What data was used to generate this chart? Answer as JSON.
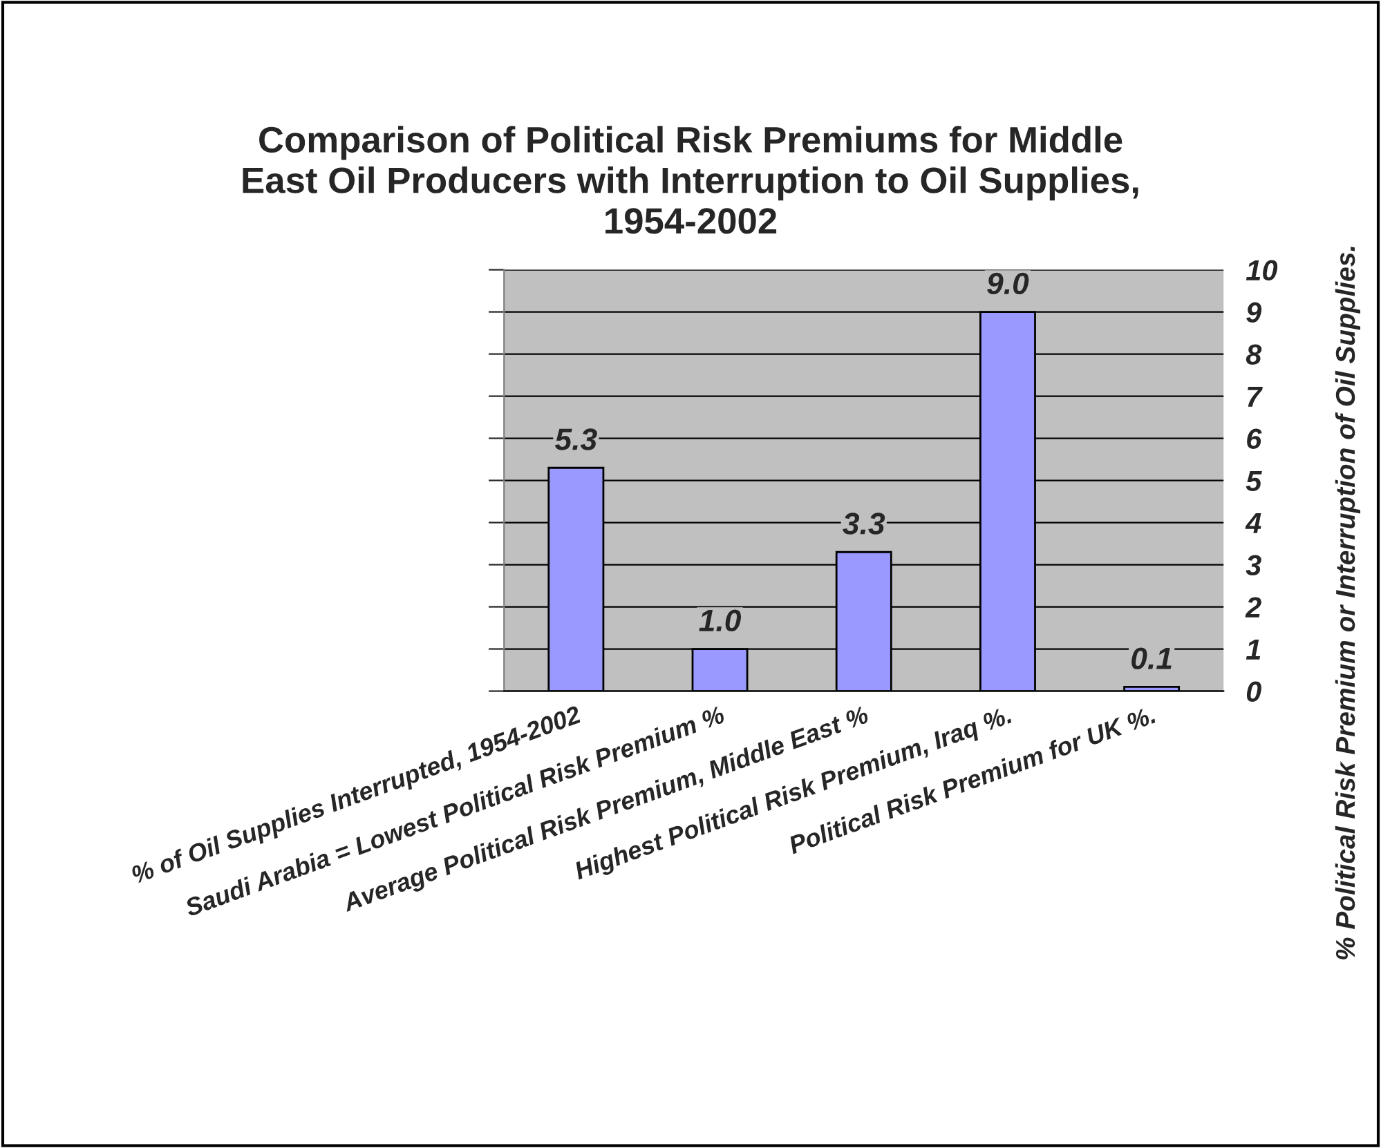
{
  "chart_data": {
    "type": "bar",
    "title": "Comparison of Political Risk Premiums for Middle\nEast Oil Producers with Interruption to Oil Supplies,\n1954-2002",
    "categories": [
      "% of Oil Supplies Interrupted, 1954-2002",
      "Saudi Arabia = Lowest Political Risk Premium %",
      "Average Political Risk Premium, Middle East %",
      "Highest Political Risk Premium, Iraq %.",
      "Political Risk Premium for UK %."
    ],
    "values": [
      5.3,
      1.0,
      3.3,
      9.0,
      0.1
    ],
    "value_labels": [
      "5.3",
      "1.0",
      "3.3",
      "9.0",
      "0.1"
    ],
    "color": "#9999ff",
    "ylabel": "% Political Risk Premium or Interruption of Oil Supplies.",
    "ylim": [
      0,
      10
    ],
    "yticks": [
      0,
      1,
      2,
      3,
      4,
      5,
      6,
      7,
      8,
      9,
      10
    ],
    "grid": "y"
  }
}
